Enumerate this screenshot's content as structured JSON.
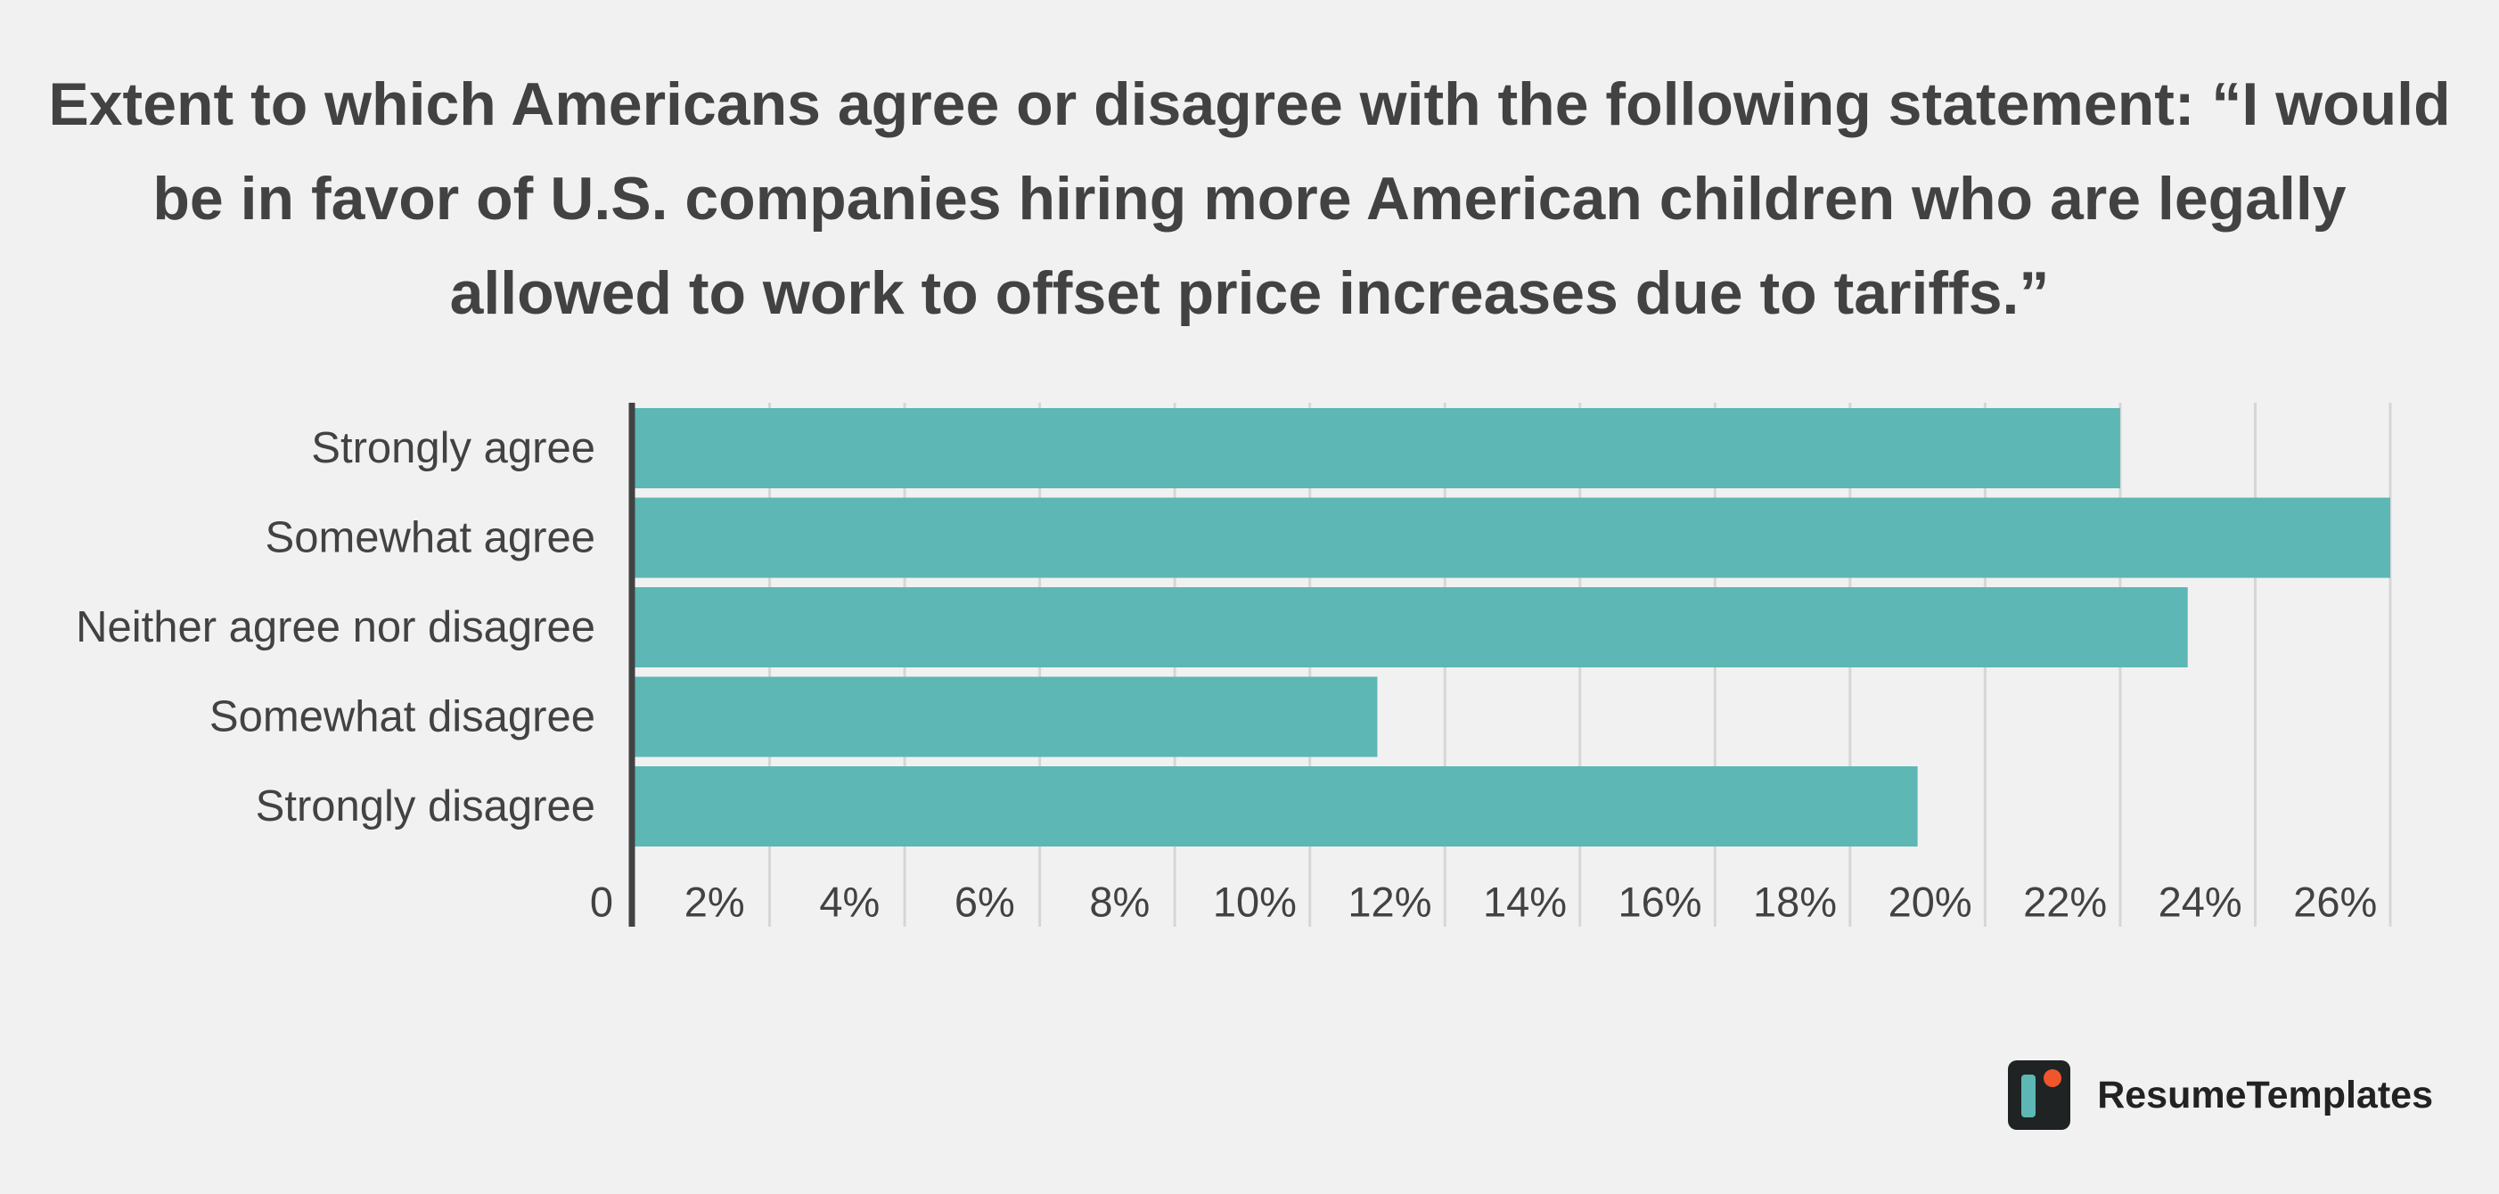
{
  "chart_data": {
    "type": "bar",
    "orientation": "horizontal",
    "title": "Extent to which Americans agree or disagree with the following statement: “I would be in favor of U.S. companies hiring more American children who are legally allowed to work to offset price increases due to tariffs.”",
    "categories": [
      "Strongly agree",
      "Somewhat agree",
      "Neither agree nor disagree",
      "Somewhat disagree",
      "Strongly disagree"
    ],
    "values": [
      22,
      26,
      23,
      11,
      19
    ],
    "xlim": [
      0,
      26
    ],
    "x_ticks": [
      0,
      2,
      4,
      6,
      8,
      10,
      12,
      14,
      16,
      18,
      20,
      22,
      24,
      26
    ],
    "x_tick_labels": [
      "0",
      "2%",
      "4%",
      "6%",
      "8%",
      "10%",
      "12%",
      "14%",
      "16%",
      "18%",
      "20%",
      "22%",
      "24%",
      "26%"
    ],
    "xlabel": "",
    "ylabel": "",
    "grid": true,
    "bar_color": "#5db7b4",
    "grid_color": "#d6d6d6",
    "axis_color": "#424242"
  },
  "branding": {
    "name": "ResumeTemplates",
    "logo_icon": "resumetemplates-logo-icon",
    "logo_colors": {
      "background": "#1f2324",
      "bar": "#5db7b4",
      "dot": "#f0562b"
    }
  }
}
